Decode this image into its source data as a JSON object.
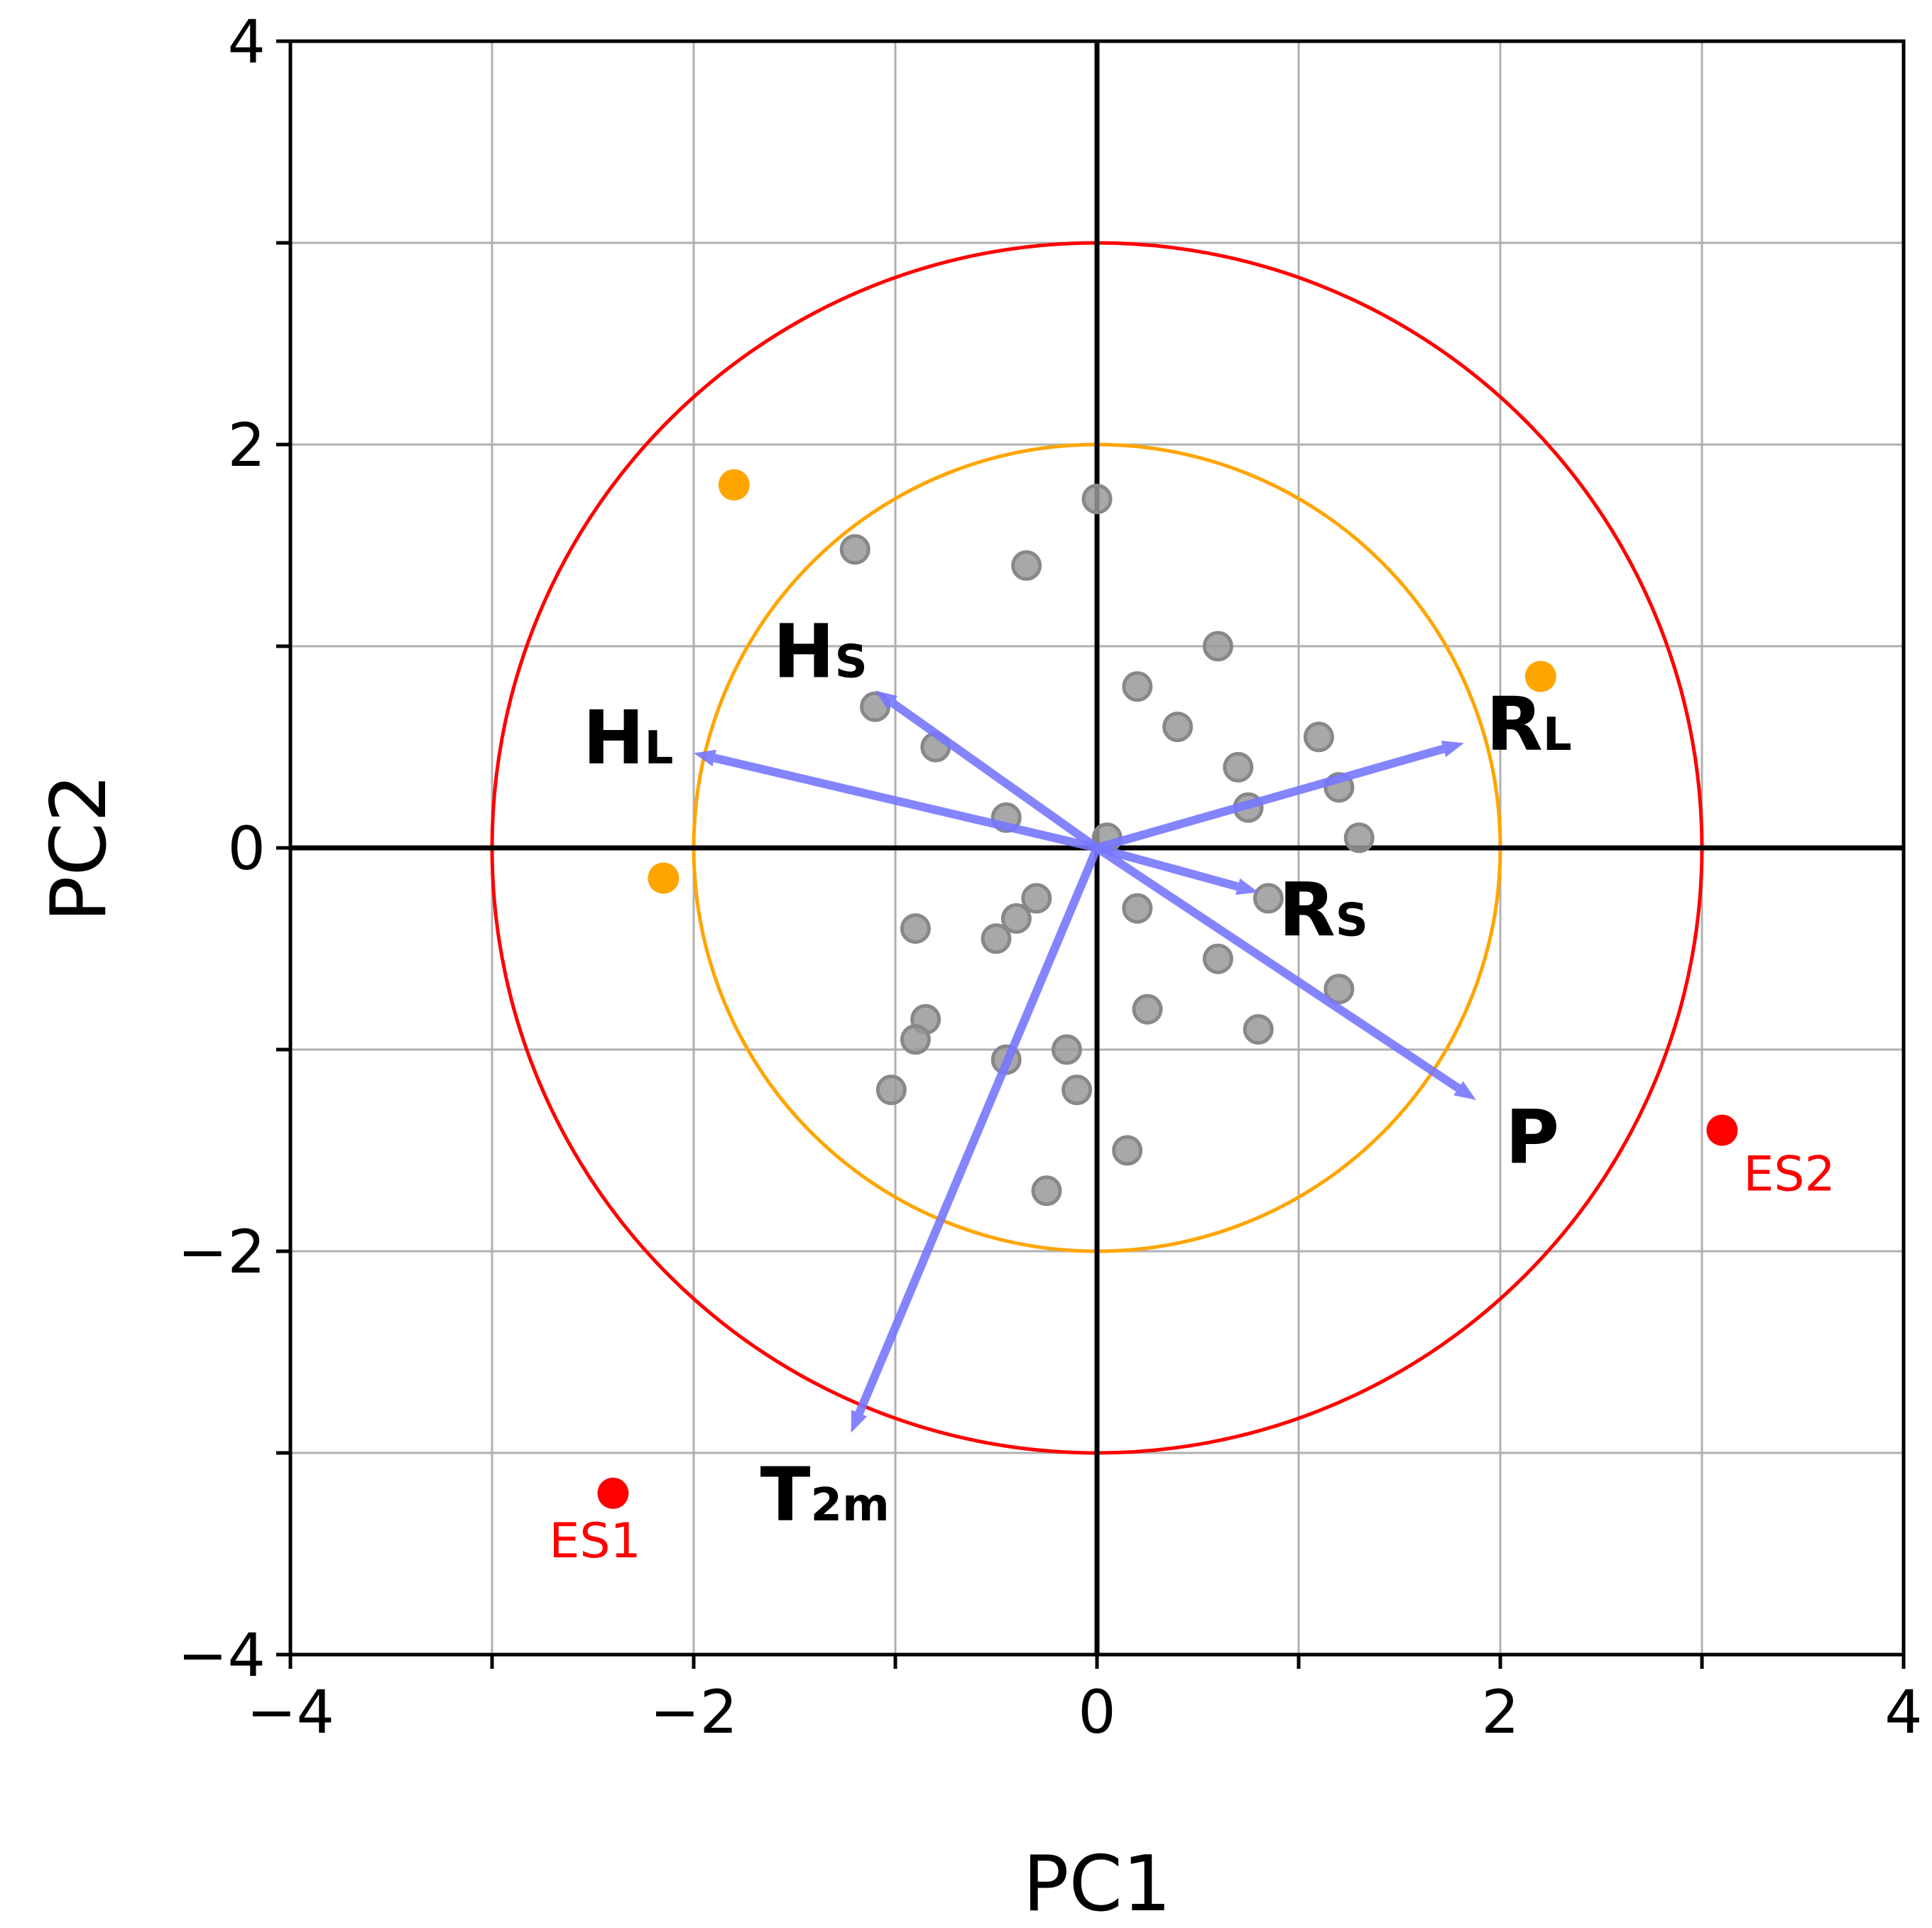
{
  "chart_data": {
    "type": "scatter",
    "xlabel": "PC1",
    "ylabel": "PC2",
    "xlim": [
      -4,
      4
    ],
    "ylim": [
      -4,
      4
    ],
    "xticks": [
      -4,
      -3,
      -2,
      -1,
      0,
      1,
      2,
      3,
      4
    ],
    "yticks": [
      -4,
      -3,
      -2,
      -1,
      0,
      1,
      2,
      3,
      4
    ],
    "xtick_labels": [
      "−4",
      "",
      "−2",
      "",
      "0",
      "",
      "2",
      "",
      "4"
    ],
    "ytick_labels": [
      "−4",
      "",
      "−2",
      "",
      "0",
      "",
      "2",
      "",
      "4"
    ],
    "grid": true,
    "circles": [
      {
        "radius": 2,
        "color": "#ffa500"
      },
      {
        "radius": 3,
        "color": "#ff0000"
      }
    ],
    "points_gray": [
      [
        0.0,
        1.73
      ],
      [
        -1.2,
        1.48
      ],
      [
        -0.35,
        1.4
      ],
      [
        0.6,
        1.0
      ],
      [
        0.2,
        0.8
      ],
      [
        -1.1,
        0.7
      ],
      [
        0.4,
        0.6
      ],
      [
        1.1,
        0.55
      ],
      [
        -0.8,
        0.5
      ],
      [
        0.7,
        0.4
      ],
      [
        1.2,
        0.3
      ],
      [
        0.75,
        0.2
      ],
      [
        -0.45,
        0.15
      ],
      [
        0.05,
        0.05
      ],
      [
        1.3,
        0.05
      ],
      [
        0.85,
        -0.25
      ],
      [
        -0.3,
        -0.25
      ],
      [
        0.2,
        -0.3
      ],
      [
        -0.4,
        -0.35
      ],
      [
        -0.9,
        -0.4
      ],
      [
        -0.5,
        -0.45
      ],
      [
        0.6,
        -0.55
      ],
      [
        1.2,
        -0.7
      ],
      [
        0.25,
        -0.8
      ],
      [
        -0.85,
        -0.85
      ],
      [
        0.8,
        -0.9
      ],
      [
        -0.9,
        -0.95
      ],
      [
        -0.15,
        -1.0
      ],
      [
        -0.45,
        -1.05
      ],
      [
        -0.1,
        -1.2
      ],
      [
        -1.02,
        -1.2
      ],
      [
        0.15,
        -1.5
      ],
      [
        -0.25,
        -1.7
      ]
    ],
    "points_orange": [
      [
        -1.8,
        1.8
      ],
      [
        2.2,
        0.85
      ],
      [
        -2.15,
        -0.15
      ]
    ],
    "points_red": [
      {
        "label": "ES1",
        "x": -2.4,
        "y": -3.2
      },
      {
        "label": "ES2",
        "x": 3.1,
        "y": -1.4
      }
    ],
    "vectors": [
      {
        "base": "H",
        "sub": "S",
        "x": -1.1,
        "y": 0.78
      },
      {
        "base": "H",
        "sub": "L",
        "x": -2.0,
        "y": 0.47
      },
      {
        "base": "R",
        "sub": "L",
        "x": 1.82,
        "y": 0.52
      },
      {
        "base": "R",
        "sub": "S",
        "x": 0.8,
        "y": -0.22
      },
      {
        "base": "P",
        "sub": "",
        "x": 1.88,
        "y": -1.25
      },
      {
        "base": "T",
        "sub": "2m",
        "x": -1.22,
        "y": -2.9
      }
    ],
    "colors": {
      "vector": "#7777ff",
      "gray_point": "#999999",
      "orange_point": "#ffa500",
      "red_point": "#ff0000",
      "grid": "#b0b0b0"
    }
  }
}
